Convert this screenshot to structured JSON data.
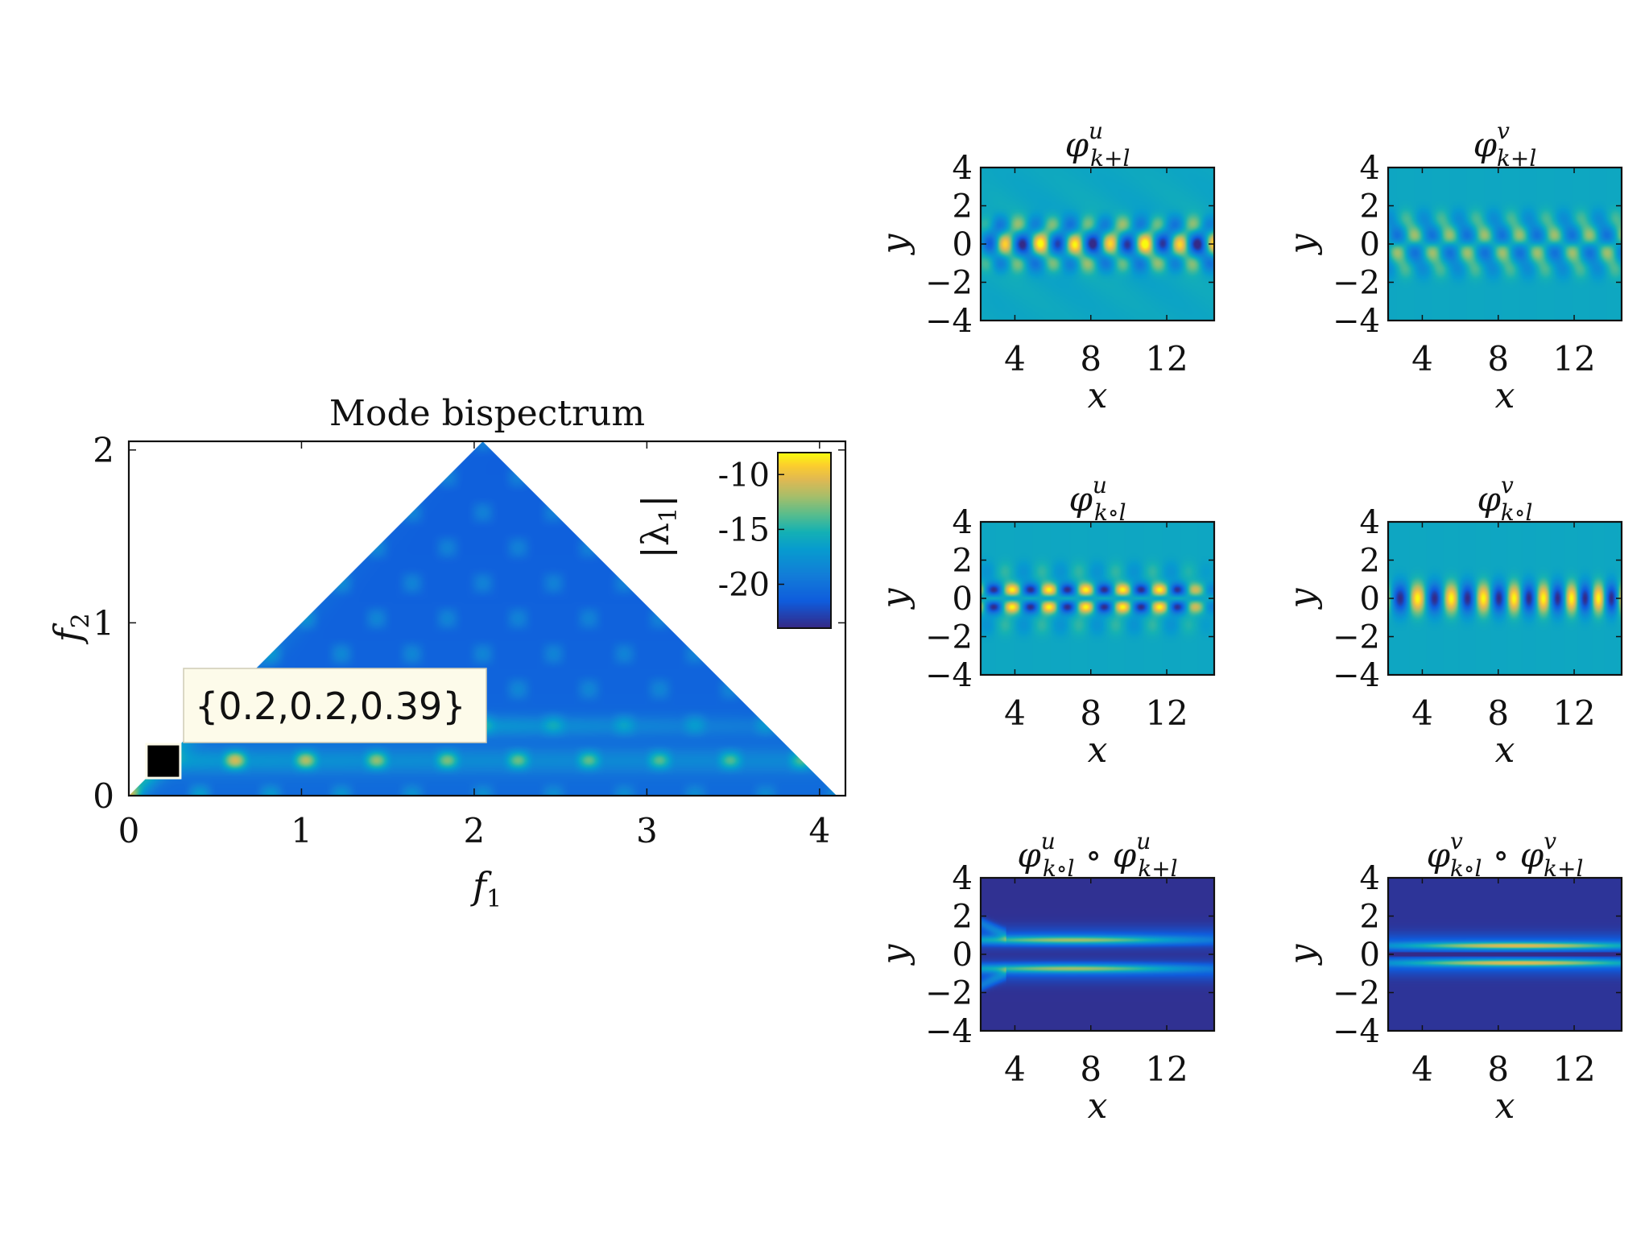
{
  "colors": {
    "background": "#ffffff",
    "axis": "#111111",
    "cmap_low": "#3b2a98",
    "cmap_mid": "#21bcb0",
    "cmap_high": "#f9fb0e",
    "callout_bg": "#fdfbea",
    "marker": "#000000"
  },
  "chart_data": [
    {
      "id": "bispectrum",
      "type": "heatmap",
      "title": "Mode bispectrum",
      "xlabel": "f",
      "xlabel_sub": "1",
      "ylabel": "f",
      "ylabel_sub": "2",
      "xlim": [
        0,
        4.15
      ],
      "ylim": [
        0,
        2.05
      ],
      "xticks": [
        0,
        1,
        2,
        3,
        4
      ],
      "yticks": [
        0,
        1,
        2
      ],
      "region": "triangle f2 <= f1, f2 <= 4.1 - f1",
      "colorbar": {
        "label": "|λ",
        "label_sub": "1",
        "label_end": "|",
        "ticks": [
          -10,
          -15,
          -20
        ],
        "range": [
          -24,
          -8
        ],
        "placement": "top-right inside"
      },
      "annotation": {
        "text": "{0.2,0.2,0.39}",
        "f1": 0.2,
        "f2": 0.2
      }
    },
    {
      "id": "u-kpl",
      "type": "heatmap",
      "pattern": "u_sum",
      "title_sym": "φ",
      "title_sup": "u",
      "title_sub": "k+l",
      "xlabel": "x",
      "ylabel": "y",
      "xlim": [
        2.2,
        14.5
      ],
      "ylim": [
        -4,
        4
      ],
      "xticks": [
        4,
        8,
        12
      ],
      "yticks": [
        4,
        2,
        0,
        -2,
        -4
      ]
    },
    {
      "id": "v-kpl",
      "type": "heatmap",
      "pattern": "v_sum",
      "title_sym": "φ",
      "title_sup": "v",
      "title_sub": "k+l",
      "xlabel": "x",
      "ylabel": "y",
      "xlim": [
        2.2,
        14.5
      ],
      "ylim": [
        -4,
        4
      ],
      "xticks": [
        4,
        8,
        12
      ],
      "yticks": [
        4,
        2,
        0,
        -2,
        -4
      ]
    },
    {
      "id": "u-kol",
      "type": "heatmap",
      "pattern": "u_circ",
      "title_sym": "φ",
      "title_sup": "u",
      "title_sub": "k∘l",
      "xlabel": "x",
      "ylabel": "y",
      "xlim": [
        2.2,
        14.5
      ],
      "ylim": [
        -4,
        4
      ],
      "xticks": [
        4,
        8,
        12
      ],
      "yticks": [
        4,
        2,
        0,
        -2,
        -4
      ]
    },
    {
      "id": "v-kol",
      "type": "heatmap",
      "pattern": "v_circ",
      "title_sym": "φ",
      "title_sup": "v",
      "title_sub": "k∘l",
      "xlabel": "x",
      "ylabel": "y",
      "xlim": [
        2.2,
        14.5
      ],
      "ylim": [
        -4,
        4
      ],
      "xticks": [
        4,
        8,
        12
      ],
      "yticks": [
        4,
        2,
        0,
        -2,
        -4
      ]
    },
    {
      "id": "u-prod",
      "type": "heatmap",
      "pattern": "u_prod",
      "title_sym": "φ",
      "title_sup": "u",
      "title_sub": "k∘l",
      "title_op": "∘",
      "title_sym2": "φ",
      "title_sup2": "u",
      "title_sub2": "k+l",
      "xlabel": "x",
      "ylabel": "y",
      "xlim": [
        2.2,
        14.5
      ],
      "ylim": [
        -4,
        4
      ],
      "xticks": [
        4,
        8,
        12
      ],
      "yticks": [
        4,
        2,
        0,
        -2,
        -4
      ]
    },
    {
      "id": "v-prod",
      "type": "heatmap",
      "pattern": "v_prod",
      "title_sym": "φ",
      "title_sup": "v",
      "title_sub": "k∘l",
      "title_op": "∘",
      "title_sym2": "φ",
      "title_sup2": "v",
      "title_sub2": "k+l",
      "xlabel": "x",
      "ylabel": "y",
      "xlim": [
        2.2,
        14.5
      ],
      "ylim": [
        -4,
        4
      ],
      "xticks": [
        4,
        8,
        12
      ],
      "yticks": [
        4,
        2,
        0,
        -2,
        -4
      ]
    }
  ]
}
